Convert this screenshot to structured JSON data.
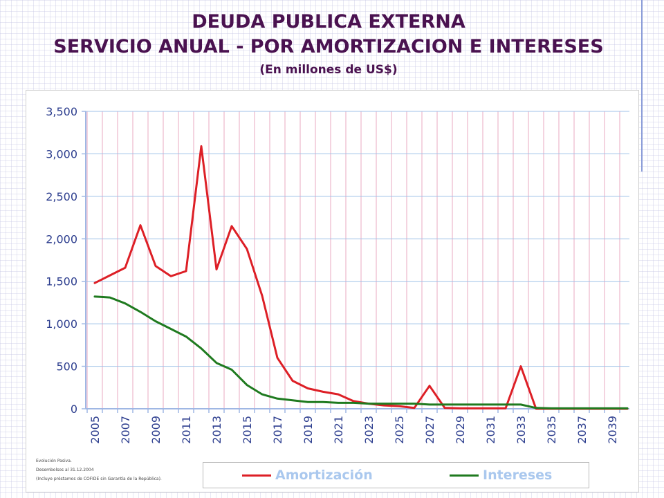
{
  "title": {
    "line1": "DEUDA PUBLICA EXTERNA",
    "line2": "SERVICIO ANUAL - POR AMORTIZACION E INTERESES",
    "line3": "(En millones de US$)"
  },
  "footnotes": {
    "line1": "Evolución Pasiva.",
    "line2": "Desembolsos al 31.12.2004",
    "line3": "(Incluye préstamos de COFIDE sin Garantía de la República)."
  },
  "colors": {
    "amortizacion": "#dd1f26",
    "intereses": "#1f7a1f",
    "axis": "#9fb7e4",
    "gridline": "#9fc2e8",
    "vertical_grid": "#e8a9c0",
    "tick_text": "#2e3f8f",
    "legend_text": "#aac8ee"
  },
  "legend": {
    "amortizacion": "Amortización",
    "intereses": "Intereses"
  },
  "chart_data": {
    "type": "line",
    "title": "DEUDA PUBLICA EXTERNA - SERVICIO ANUAL - POR AMORTIZACION E INTERESES",
    "xlabel": "",
    "ylabel": "",
    "ylim": [
      0,
      3500
    ],
    "yticks": [
      0,
      500,
      1000,
      1500,
      2000,
      2500,
      3000,
      3500
    ],
    "ytick_labels": [
      "0",
      "500",
      "1,000",
      "1,500",
      "2,000",
      "2,500",
      "3,000",
      "3,500"
    ],
    "x": [
      2005,
      2006,
      2007,
      2008,
      2009,
      2010,
      2011,
      2012,
      2013,
      2014,
      2015,
      2016,
      2017,
      2018,
      2019,
      2020,
      2021,
      2022,
      2023,
      2024,
      2025,
      2026,
      2027,
      2028,
      2029,
      2030,
      2031,
      2032,
      2033,
      2034,
      2035,
      2036,
      2037,
      2038,
      2039,
      2040
    ],
    "xtick_labels": [
      "2005",
      "2007",
      "2009",
      "2011",
      "2013",
      "2015",
      "2017",
      "2019",
      "2021",
      "2023",
      "2025",
      "2027",
      "2029",
      "2031",
      "2033",
      "2035",
      "2037",
      "2039"
    ],
    "legend_position": "bottom",
    "series": [
      {
        "name": "Amortización",
        "values": [
          1480,
          1570,
          1660,
          2160,
          1680,
          1560,
          1620,
          3090,
          1640,
          2150,
          1880,
          1330,
          600,
          330,
          240,
          200,
          170,
          90,
          60,
          40,
          30,
          10,
          270,
          10,
          5,
          5,
          5,
          5,
          500,
          0,
          0,
          0,
          0,
          0,
          0,
          0
        ]
      },
      {
        "name": "Intereses",
        "values": [
          1320,
          1310,
          1240,
          1140,
          1030,
          940,
          850,
          710,
          540,
          460,
          280,
          170,
          120,
          100,
          80,
          80,
          70,
          70,
          60,
          60,
          60,
          60,
          50,
          50,
          50,
          50,
          50,
          50,
          50,
          10,
          5,
          5,
          5,
          5,
          5,
          5
        ]
      }
    ]
  }
}
